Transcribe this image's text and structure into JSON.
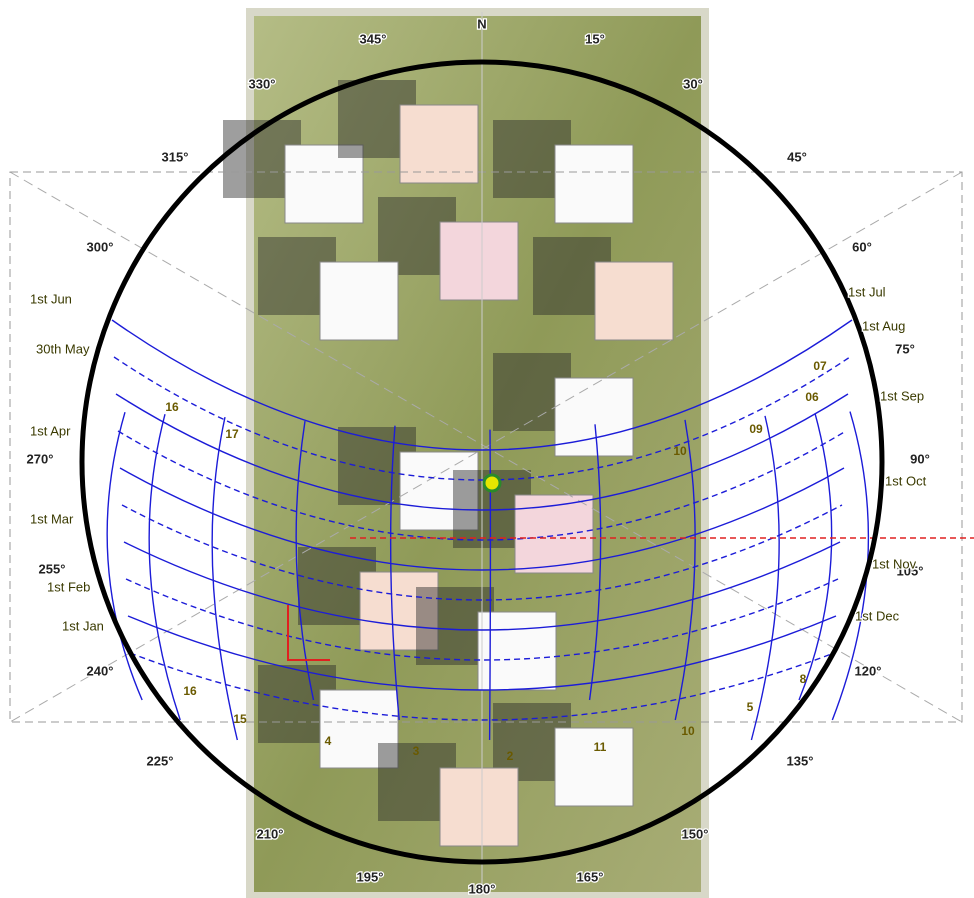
{
  "compass": {
    "azimuth_labels": [
      "345°",
      "N",
      "15°",
      "330°",
      "30°",
      "315°",
      "45°",
      "300°",
      "60°",
      "75°",
      "270°",
      "90°",
      "255°",
      "105°",
      "240°",
      "120°",
      "225°",
      "135°",
      "210°",
      "150°",
      "195°",
      "180°",
      "165°"
    ]
  },
  "date_labels": {
    "left": [
      "1st Jun",
      "30th May",
      "1st Apr",
      "1st Mar",
      "1st Feb",
      "1st Jan"
    ],
    "right": [
      "1st Jul",
      "1st Aug",
      "1st Sep",
      "1st Oct",
      "1st Nov",
      "1st Dec"
    ]
  },
  "hour_labels": [
    "16",
    "17",
    "16",
    "15",
    "4",
    "3",
    "2",
    "11",
    "10",
    "5",
    "8",
    "07",
    "06",
    "09",
    "10"
  ]
}
